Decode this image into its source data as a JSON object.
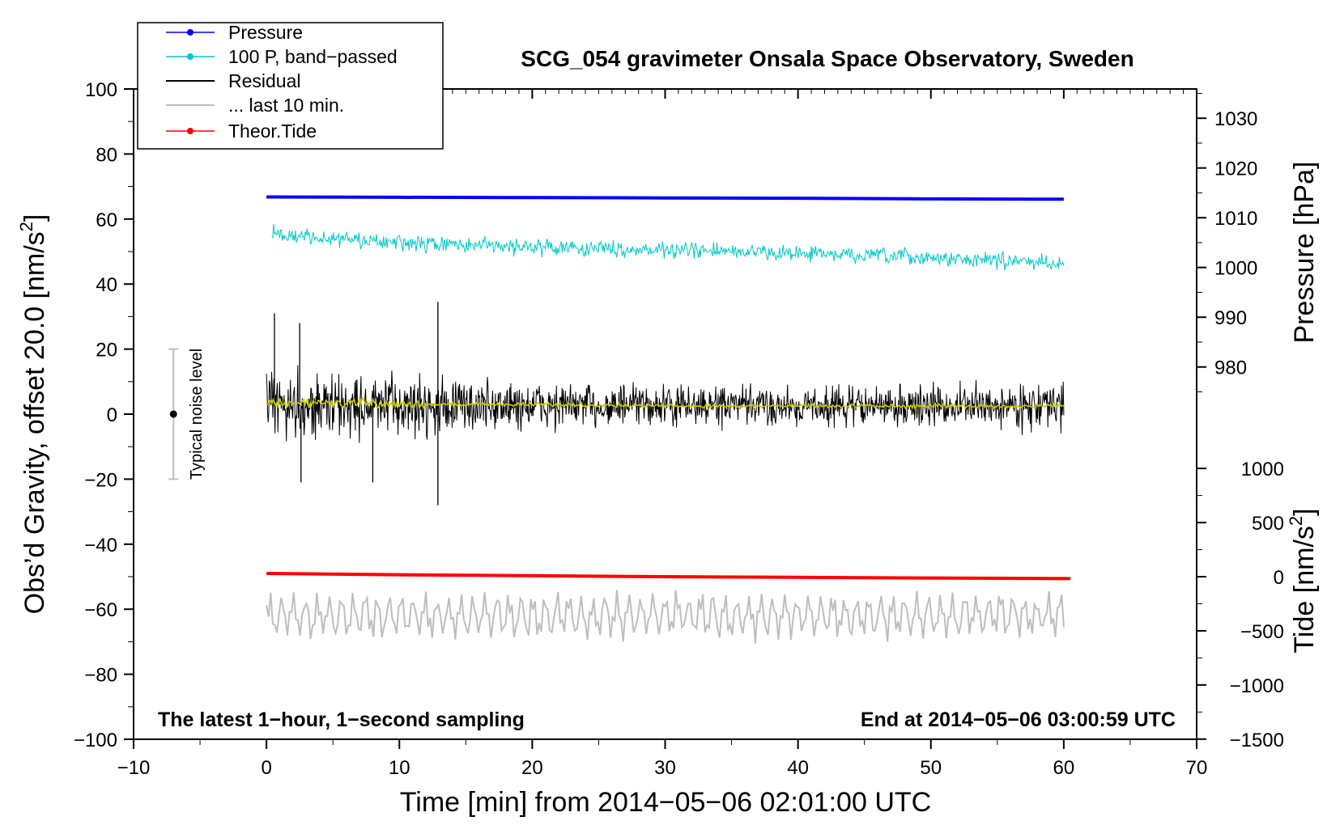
{
  "chart_data": {
    "type": "line",
    "title": "SCG_054 gravimeter Onsala Space Observatory, Sweden",
    "xlabel": "Time [min] from 2014−05−06 02:01:00 UTC",
    "ylabel_main": "Obs’d Gravity, offset 20.0 [nm/s",
    "ylabel_main_sup": "2",
    "ylabel_main_tail": "]",
    "ylabel_pressure": "Pressure [hPa]",
    "ylabel_tide": "Tide [nm/s",
    "ylabel_tide_sup": "2",
    "ylabel_tide_tail": "]",
    "xlim": [
      -10,
      70
    ],
    "ylim": [
      -100,
      100
    ],
    "xticks": [
      -10,
      0,
      10,
      20,
      30,
      40,
      50,
      60,
      70
    ],
    "xtick_labels": [
      "−10",
      "0",
      "10",
      "20",
      "30",
      "40",
      "50",
      "60",
      "70"
    ],
    "yticks": [
      -100,
      -80,
      -60,
      -40,
      -20,
      0,
      20,
      40,
      60,
      80,
      100
    ],
    "ytick_labels": [
      "−100",
      "−80",
      "−60",
      "−40",
      "−20",
      "0",
      "20",
      "40",
      "60",
      "80",
      "100"
    ],
    "pressure_axis": {
      "ticks": [
        980,
        990,
        1000,
        1010,
        1020,
        1030
      ],
      "tick_labels": [
        "980",
        "990",
        "1000",
        "1010",
        "1020",
        "1030"
      ],
      "gravity_at_980": 14.5,
      "gravity_per_hpa": 1.53
    },
    "tide_axis": {
      "ticks": [
        -1500,
        -1000,
        -500,
        0,
        500,
        1000
      ],
      "tick_labels": [
        "−1500",
        "−1000",
        "−500",
        "0",
        "500",
        "1000"
      ],
      "gravity_at_0": -50,
      "gravity_per_unit": 0.0333
    },
    "legend": {
      "position": "top-left",
      "items": [
        {
          "label": "Pressure",
          "color": "#0000ff",
          "marker": true
        },
        {
          "label": "100 P, band−passed",
          "color": "#00c8c8",
          "marker": true
        },
        {
          "label": "Residual",
          "color": "#000000",
          "marker": false
        },
        {
          "label": "... last 10 min.",
          "color": "#bebebe",
          "marker": false
        },
        {
          "label": "Theor.Tide",
          "color": "#ff0000",
          "marker": true
        }
      ]
    },
    "series": [
      {
        "name": "Pressure",
        "color": "#0000ff",
        "x": [
          0,
          10,
          20,
          30,
          40,
          50,
          60
        ],
        "y": [
          66.8,
          66.7,
          66.6,
          66.5,
          66.4,
          66.2,
          66.1
        ]
      },
      {
        "name": "100 P, band-passed",
        "color": "#00c8c8",
        "x": [
          0,
          10,
          20,
          30,
          40,
          50,
          60
        ],
        "y": [
          55.5,
          52.5,
          51.5,
          50.5,
          49.5,
          48.0,
          46.5
        ],
        "noise_amplitude": 3.5
      },
      {
        "name": "Residual",
        "color": "#000000",
        "x": [
          0,
          5,
          10,
          20,
          30,
          40,
          50,
          60
        ],
        "y": [
          2.5,
          2.5,
          2.5,
          2.5,
          2.5,
          2.5,
          2.5,
          2.5
        ],
        "noise_envelope": [
          [
            0,
            14
          ],
          [
            5,
            13
          ],
          [
            10,
            12
          ],
          [
            20,
            10
          ],
          [
            30,
            8
          ],
          [
            40,
            8
          ],
          [
            50,
            8
          ],
          [
            60,
            9
          ]
        ],
        "spikes": [
          {
            "x": 12.9,
            "y": 34.5
          },
          {
            "x": 12.9,
            "y": -28
          },
          {
            "x": 0.6,
            "y": 31
          },
          {
            "x": 2.5,
            "y": 28
          },
          {
            "x": 8.0,
            "y": -21
          },
          {
            "x": 2.6,
            "y": -21
          }
        ]
      },
      {
        "name": "Smoothed residual",
        "color": "#cccc00",
        "x": [
          0,
          5,
          10,
          20,
          30,
          40,
          50,
          60
        ],
        "y": [
          3.5,
          3.5,
          3.0,
          3.0,
          2.5,
          2.5,
          2.5,
          2.5
        ],
        "noise_amplitude": 2.0
      },
      {
        "name": "Theor.Tide",
        "color": "#ff0000",
        "x": [
          0,
          10,
          20,
          30,
          40,
          50,
          60.5
        ],
        "y": [
          -49.0,
          -49.4,
          -49.7,
          -50.0,
          -50.2,
          -50.4,
          -50.6
        ]
      },
      {
        "name": "... last 10 min.",
        "color": "#bebebe",
        "x": [
          0,
          60
        ],
        "y": [
          -62,
          -62
        ],
        "wave_amplitude": 6
      }
    ],
    "noise_bar": {
      "label": "Typical noise level",
      "x": -7,
      "center": 0,
      "low": -20,
      "high": 20
    },
    "annotations": [
      {
        "text": "The latest 1−hour, 1−second sampling",
        "position": "bottom-left"
      },
      {
        "text": "End at 2014−05−06 03:00:59 UTC",
        "position": "bottom-right"
      }
    ]
  }
}
